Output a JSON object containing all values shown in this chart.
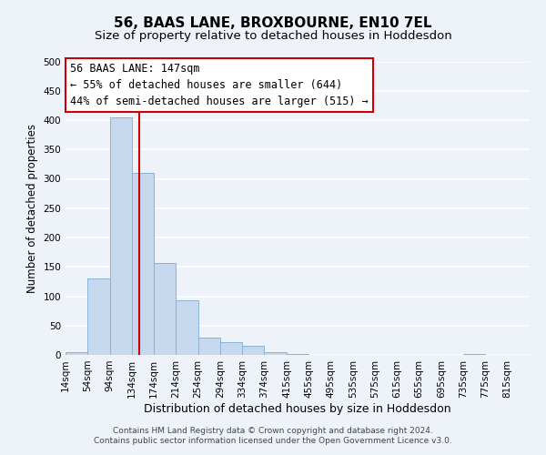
{
  "title": "56, BAAS LANE, BROXBOURNE, EN10 7EL",
  "subtitle": "Size of property relative to detached houses in Hoddesdon",
  "xlabel": "Distribution of detached houses by size in Hoddesdon",
  "ylabel": "Number of detached properties",
  "footnote1": "Contains HM Land Registry data © Crown copyright and database right 2024.",
  "footnote2": "Contains public sector information licensed under the Open Government Licence v3.0.",
  "bar_edges": [
    14,
    54,
    94,
    134,
    174,
    214,
    254,
    294,
    334,
    374,
    415,
    455,
    495,
    535,
    575,
    615,
    655,
    695,
    735,
    775,
    815
  ],
  "bar_heights": [
    5,
    130,
    405,
    310,
    157,
    93,
    30,
    22,
    15,
    5,
    1,
    0,
    0,
    0,
    0,
    0,
    0,
    0,
    1,
    0,
    0
  ],
  "bar_color": "#c5d8ed",
  "bar_edge_color": "#8ab4d4",
  "vline_x": 147,
  "vline_color": "#cc0000",
  "ylim": [
    0,
    500
  ],
  "yticks": [
    0,
    50,
    100,
    150,
    200,
    250,
    300,
    350,
    400,
    450,
    500
  ],
  "annotation_title": "56 BAAS LANE: 147sqm",
  "annotation_line1": "← 55% of detached houses are smaller (644)",
  "annotation_line2": "44% of semi-detached houses are larger (515) →",
  "annotation_box_color": "#ffffff",
  "annotation_box_edge": "#cc0000",
  "bg_color": "#eef3fa",
  "grid_color": "#ffffff",
  "title_fontsize": 11,
  "subtitle_fontsize": 9.5,
  "xlabel_fontsize": 9,
  "ylabel_fontsize": 8.5,
  "tick_fontsize": 7.5,
  "annot_fontsize": 8.5,
  "footnote_fontsize": 6.5
}
